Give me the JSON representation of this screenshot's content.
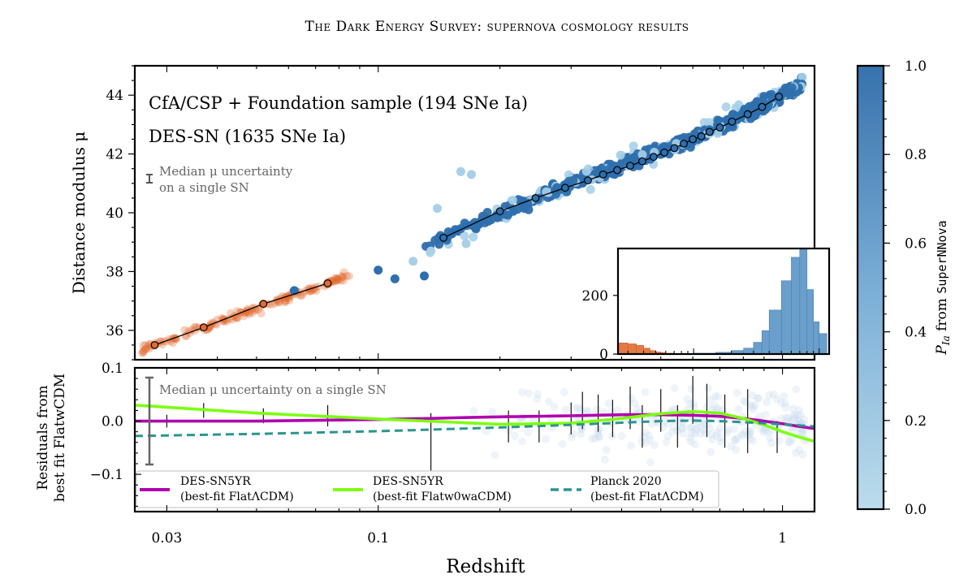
{
  "title": "The Dark Energy Survey: supernova cosmology results",
  "colors": {
    "cfa": "#e06a30",
    "des_dark": "#2e6fad",
    "des_light": "#a9d0e8",
    "purple": "#b000b0",
    "green": "#7dff10",
    "teal": "#2a9590",
    "gray": "#555555"
  },
  "chart_data": [
    {
      "id": "main",
      "type": "scatter",
      "xscale": "log",
      "xlim": [
        0.025,
        1.2
      ],
      "ylim": [
        35.0,
        45.0
      ],
      "ylabel": "Distance modulus μ",
      "yticks": [
        36,
        38,
        40,
        42,
        44
      ],
      "legend": [
        {
          "label": "CfA/CSP + Foundation sample (194 SNe Ia)",
          "color": "#e06a30"
        },
        {
          "label": "DES-SN (1635 SNe Ia)",
          "color": "#2e6fad"
        }
      ],
      "errorbar_note": [
        "Median μ uncertainty",
        "on a single SN"
      ],
      "binned_low_z": {
        "x": [
          0.028,
          0.037,
          0.052,
          0.075
        ],
        "y": [
          35.5,
          36.1,
          36.9,
          37.6
        ]
      },
      "binned_des": {
        "x": [
          0.145,
          0.2,
          0.245,
          0.29,
          0.33,
          0.36,
          0.39,
          0.42,
          0.45,
          0.48,
          0.51,
          0.54,
          0.57,
          0.6,
          0.63,
          0.66,
          0.7,
          0.75,
          0.82,
          0.89,
          0.98
        ],
        "y": [
          39.15,
          40.05,
          40.5,
          40.85,
          41.1,
          41.3,
          41.45,
          41.6,
          41.75,
          41.9,
          42.05,
          42.2,
          42.35,
          42.5,
          42.6,
          42.75,
          42.9,
          43.1,
          43.35,
          43.6,
          43.95
        ]
      }
    },
    {
      "id": "inset",
      "type": "histogram",
      "yticks": [
        0,
        200
      ],
      "ylim": [
        0,
        360
      ],
      "cfa_bins": {
        "x0": [
          0.025,
          0.03,
          0.035,
          0.04,
          0.045,
          0.05,
          0.055,
          0.06,
          0.07
        ],
        "x1": [
          0.03,
          0.035,
          0.04,
          0.045,
          0.05,
          0.055,
          0.06,
          0.07,
          0.08
        ],
        "counts": [
          38,
          35,
          30,
          20,
          12,
          7,
          5,
          3,
          2
        ]
      },
      "des_bins": {
        "x0": [
          0.1,
          0.15,
          0.2,
          0.25,
          0.3,
          0.35,
          0.4,
          0.5,
          0.6,
          0.7,
          0.8,
          0.9,
          1.0
        ],
        "x1": [
          0.15,
          0.2,
          0.25,
          0.3,
          0.35,
          0.4,
          0.5,
          0.6,
          0.7,
          0.8,
          0.9,
          1.0,
          1.15
        ],
        "counts": [
          3,
          6,
          12,
          20,
          40,
          80,
          150,
          250,
          330,
          360,
          220,
          110,
          70
        ]
      }
    },
    {
      "id": "residuals",
      "type": "line",
      "xscale": "log",
      "xlim": [
        0.025,
        1.2
      ],
      "ylim": [
        -0.17,
        0.1
      ],
      "ylabel": [
        "Residuals from",
        "best fit FlatwCDM"
      ],
      "yticks": [
        -0.1,
        0.0,
        0.1
      ],
      "ytick_labels": [
        "−0.1",
        "0.0",
        "0.1"
      ],
      "xlabel": "Redshift",
      "xticks": [
        0.03,
        0.1,
        1
      ],
      "xtick_labels": [
        "0.03",
        "0.1",
        "1"
      ],
      "errorbar_note": "Median μ uncertainty on a single SN",
      "series": [
        {
          "name": "DES-SN5YR",
          "sub": "(best-fit FlatΛCDM)",
          "color": "#b000b0",
          "dash": "none",
          "x": [
            0.025,
            0.05,
            0.1,
            0.2,
            0.3,
            0.4,
            0.5,
            0.6,
            0.7,
            0.8,
            0.9,
            1.0,
            1.1,
            1.2
          ],
          "y": [
            0.0,
            0.0,
            0.003,
            0.008,
            0.01,
            0.012,
            0.012,
            0.011,
            0.009,
            0.005,
            0.0,
            -0.005,
            -0.01,
            -0.014
          ]
        },
        {
          "name": "DES-SN5YR",
          "sub": "(best-fit Flatw0waCDM)",
          "color": "#7dff10",
          "dash": "none",
          "x": [
            0.025,
            0.05,
            0.1,
            0.2,
            0.3,
            0.4,
            0.5,
            0.6,
            0.7,
            0.8,
            0.9,
            1.0,
            1.1,
            1.2
          ],
          "y": [
            0.03,
            0.015,
            0.004,
            -0.006,
            -0.004,
            0.005,
            0.014,
            0.018,
            0.015,
            0.005,
            -0.007,
            -0.02,
            -0.03,
            -0.038
          ]
        },
        {
          "name": "Planck 2020",
          "sub": "(best-fit FlatΛCDM)",
          "color": "#2a9590",
          "dash": "10,6",
          "x": [
            0.025,
            0.05,
            0.1,
            0.2,
            0.3,
            0.4,
            0.5,
            0.6,
            0.7,
            0.8,
            0.9,
            1.0,
            1.1,
            1.2
          ],
          "y": [
            -0.028,
            -0.024,
            -0.019,
            -0.012,
            -0.007,
            -0.003,
            0.0,
            0.001,
            0.0,
            -0.002,
            -0.004,
            -0.006,
            -0.008,
            -0.01
          ]
        }
      ],
      "binned_errorbars": {
        "x": [
          0.03,
          0.037,
          0.052,
          0.075,
          0.135,
          0.21,
          0.25,
          0.3,
          0.32,
          0.35,
          0.38,
          0.42,
          0.45,
          0.5,
          0.55,
          0.6,
          0.65,
          0.72,
          0.82,
          0.97
        ],
        "y": [
          0.0,
          0.02,
          0.01,
          0.01,
          -0.04,
          -0.01,
          -0.01,
          0.005,
          0.02,
          0.015,
          0.005,
          0.025,
          -0.01,
          0.02,
          -0.01,
          0.04,
          0.02,
          0.0,
          0.0,
          -0.03
        ],
        "err": [
          0.012,
          0.014,
          0.014,
          0.02,
          0.055,
          0.03,
          0.03,
          0.03,
          0.035,
          0.035,
          0.035,
          0.04,
          0.04,
          0.04,
          0.04,
          0.045,
          0.05,
          0.05,
          0.06,
          0.03
        ]
      }
    }
  ],
  "colorbar": {
    "label_prefix": "P",
    "label_sub": "Ia",
    "label_mid": " from ",
    "label_code": "SuperNNova",
    "ticks": [
      "0.0",
      "0.2",
      "0.4",
      "0.6",
      "0.8",
      "1.0"
    ]
  }
}
